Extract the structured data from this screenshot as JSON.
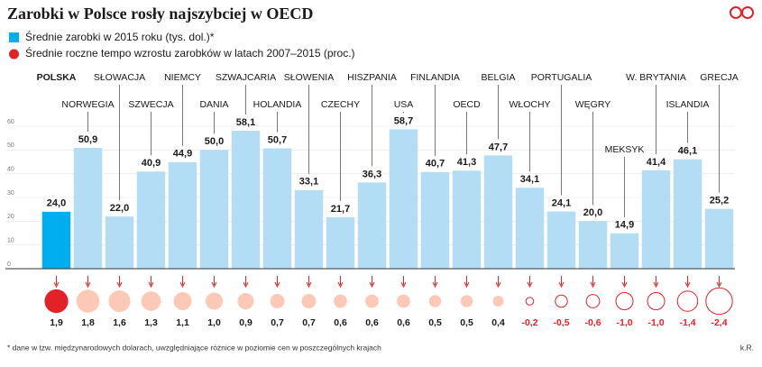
{
  "chart_data": {
    "type": "bar",
    "title": "Zarobki w Polsce rosły najszybciej w OECD",
    "credit": "k.R.",
    "footnote": "* dane w tzw. międzynarodowych dolarach, uwzględniające różnice w poziomie cen w poszczególnych krajach",
    "categories": [
      "POLSKA",
      "NORWEGIA",
      "SŁOWACJA",
      "SZWECJA",
      "NIEMCY",
      "DANIA",
      "SZWAJCARIA",
      "HOLANDIA",
      "SŁOWENIA",
      "CZECHY",
      "HISZPANIA",
      "USA",
      "FINLANDIA",
      "OECD",
      "BELGIA",
      "WŁOCHY",
      "PORTUGALIA",
      "WĘGRY",
      "MEKSYK",
      "W. BRYTANIA",
      "ISLANDIA",
      "GRECJA"
    ],
    "highlight_index": 0,
    "series": [
      {
        "name": "Średnie zarobki w 2015 roku (tys. dol.)*",
        "color": "#b3ddf5",
        "highlight_color": "#00aeef",
        "values": [
          24.0,
          50.9,
          22.0,
          40.9,
          44.9,
          50.0,
          58.1,
          50.7,
          33.1,
          21.7,
          36.3,
          58.7,
          40.7,
          41.3,
          47.7,
          34.1,
          24.1,
          20.0,
          14.9,
          41.4,
          46.1,
          25.2
        ],
        "value_labels": [
          "24,0",
          "50,9",
          "22,0",
          "40,9",
          "44,9",
          "50,0",
          "58,1",
          "50,7",
          "33,1",
          "21,7",
          "36,3",
          "58,7",
          "40,7",
          "41,3",
          "47,7",
          "34,1",
          "24,1",
          "20,0",
          "14,9",
          "41,4",
          "46,1",
          "25,2"
        ]
      },
      {
        "name": "Średnie roczne tempo wzrostu zarobków w latach 2007–2015 (proc.)",
        "color": "#e32228",
        "positive_color": "#fbc9b6",
        "values": [
          1.9,
          1.8,
          1.6,
          1.3,
          1.1,
          1.0,
          0.9,
          0.7,
          0.7,
          0.6,
          0.6,
          0.6,
          0.5,
          0.5,
          0.4,
          -0.2,
          -0.5,
          -0.6,
          -1.0,
          -1.0,
          -1.4,
          -2.4
        ],
        "value_labels": [
          "1,9",
          "1,8",
          "1,6",
          "1,3",
          "1,1",
          "1,0",
          "0,9",
          "0,7",
          "0,7",
          "0,6",
          "0,6",
          "0,6",
          "0,5",
          "0,5",
          "0,4",
          "-0,2",
          "-0,5",
          "-0,6",
          "-1,0",
          "-1,0",
          "-1,4",
          "-2,4"
        ]
      }
    ],
    "ylim": [
      0,
      60
    ],
    "yticks": [
      0,
      10,
      20,
      30,
      40,
      50,
      60
    ],
    "grid": true
  }
}
